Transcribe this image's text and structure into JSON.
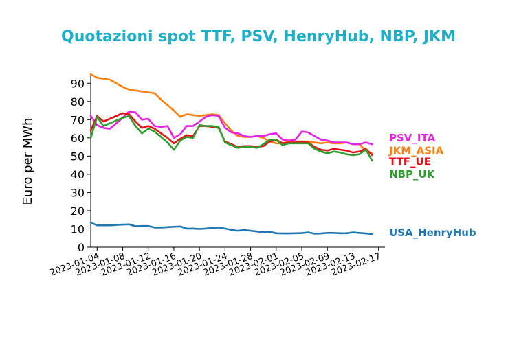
{
  "chart_data": {
    "type": "line",
    "title": "Quotazioni spot TTF, PSV, HenryHub, NBP, JKM",
    "title_color": "#1fb0c9",
    "ylabel": "Euro per MWh",
    "xlabel": "",
    "ylim": [
      0,
      95
    ],
    "yticks": [
      0,
      10,
      20,
      30,
      40,
      50,
      60,
      70,
      80,
      90
    ],
    "xlim": [
      "2023-01-03",
      "2023-02-18"
    ],
    "xticks": [
      "2023-01-04",
      "2023-01-08",
      "2023-01-12",
      "2023-01-16",
      "2023-01-20",
      "2023-01-24",
      "2023-01-28",
      "2023-02-01",
      "2023-02-05",
      "2023-02-09",
      "2023-02-13",
      "2023-02-17"
    ],
    "grid": false,
    "legend": "right-end-labels",
    "series": [
      {
        "name": "JKM_ASIA",
        "color": "#ff7f0e",
        "points": [
          [
            "2023-01-03",
            95
          ],
          [
            "2023-01-04",
            93
          ],
          [
            "2023-01-05",
            92.5
          ],
          [
            "2023-01-06",
            92
          ],
          [
            "2023-01-07",
            90
          ],
          [
            "2023-01-08",
            88
          ],
          [
            "2023-01-09",
            86.5
          ],
          [
            "2023-01-10",
            86
          ],
          [
            "2023-01-11",
            85.5
          ],
          [
            "2023-01-12",
            85
          ],
          [
            "2023-01-13",
            84.5
          ],
          [
            "2023-01-14",
            81
          ],
          [
            "2023-01-15",
            78
          ],
          [
            "2023-01-16",
            75
          ],
          [
            "2023-01-17",
            71.5
          ],
          [
            "2023-01-18",
            73
          ],
          [
            "2023-01-19",
            72.5
          ],
          [
            "2023-01-20",
            72
          ],
          [
            "2023-01-21",
            72.5
          ],
          [
            "2023-01-22",
            73
          ],
          [
            "2023-01-23",
            72.5
          ],
          [
            "2023-01-24",
            68
          ],
          [
            "2023-01-25",
            64
          ],
          [
            "2023-01-26",
            61
          ],
          [
            "2023-01-27",
            60.5
          ],
          [
            "2023-01-28",
            60.5
          ],
          [
            "2023-01-29",
            61
          ],
          [
            "2023-01-30",
            60
          ],
          [
            "2023-01-31",
            58
          ],
          [
            "2023-02-01",
            57
          ],
          [
            "2023-02-02",
            57
          ],
          [
            "2023-02-03",
            58
          ],
          [
            "2023-02-04",
            58
          ],
          [
            "2023-02-05",
            58
          ],
          [
            "2023-02-06",
            58
          ],
          [
            "2023-02-07",
            57.5
          ],
          [
            "2023-02-08",
            57
          ],
          [
            "2023-02-09",
            57.5
          ],
          [
            "2023-02-10",
            57
          ],
          [
            "2023-02-11",
            57
          ],
          [
            "2023-02-12",
            57.5
          ],
          [
            "2023-02-13",
            56.5
          ],
          [
            "2023-02-14",
            56.5
          ],
          [
            "2023-02-15",
            53
          ],
          [
            "2023-02-16",
            51.5
          ]
        ]
      },
      {
        "name": "PSV_ITA",
        "color": "#e820e8",
        "points": [
          [
            "2023-01-03",
            72
          ],
          [
            "2023-01-04",
            67
          ],
          [
            "2023-01-05",
            65.5
          ],
          [
            "2023-01-06",
            65
          ],
          [
            "2023-01-07",
            68
          ],
          [
            "2023-01-08",
            71
          ],
          [
            "2023-01-09",
            74.5
          ],
          [
            "2023-01-10",
            74
          ],
          [
            "2023-01-11",
            70
          ],
          [
            "2023-01-12",
            70.5
          ],
          [
            "2023-01-13",
            66.5
          ],
          [
            "2023-01-14",
            66
          ],
          [
            "2023-01-15",
            66.5
          ],
          [
            "2023-01-16",
            60
          ],
          [
            "2023-01-17",
            62
          ],
          [
            "2023-01-18",
            66.5
          ],
          [
            "2023-01-19",
            66.5
          ],
          [
            "2023-01-20",
            69
          ],
          [
            "2023-01-21",
            71.5
          ],
          [
            "2023-01-22",
            72.5
          ],
          [
            "2023-01-23",
            72
          ],
          [
            "2023-01-24",
            65.5
          ],
          [
            "2023-01-25",
            63
          ],
          [
            "2023-01-26",
            62.5
          ],
          [
            "2023-01-27",
            61
          ],
          [
            "2023-01-28",
            60.5
          ],
          [
            "2023-01-29",
            61
          ],
          [
            "2023-01-30",
            61
          ],
          [
            "2023-01-31",
            62
          ],
          [
            "2023-02-01",
            62.5
          ],
          [
            "2023-02-02",
            59
          ],
          [
            "2023-02-03",
            58.5
          ],
          [
            "2023-02-04",
            59
          ],
          [
            "2023-02-05",
            63.5
          ],
          [
            "2023-02-06",
            63
          ],
          [
            "2023-02-07",
            61
          ],
          [
            "2023-02-08",
            59
          ],
          [
            "2023-02-09",
            58.5
          ],
          [
            "2023-02-10",
            57.5
          ],
          [
            "2023-02-11",
            57.5
          ],
          [
            "2023-02-12",
            57.5
          ],
          [
            "2023-02-13",
            56.5
          ],
          [
            "2023-02-14",
            56.5
          ],
          [
            "2023-02-15",
            57.5
          ],
          [
            "2023-02-16",
            56.5
          ]
        ]
      },
      {
        "name": "TTF_UE",
        "color": "#e8111a",
        "points": [
          [
            "2023-01-03",
            64
          ],
          [
            "2023-01-04",
            72
          ],
          [
            "2023-01-05",
            69
          ],
          [
            "2023-01-06",
            70.5
          ],
          [
            "2023-01-07",
            72
          ],
          [
            "2023-01-08",
            73.5
          ],
          [
            "2023-01-09",
            73
          ],
          [
            "2023-01-10",
            69
          ],
          [
            "2023-01-11",
            65.5
          ],
          [
            "2023-01-12",
            66.5
          ],
          [
            "2023-01-13",
            65
          ],
          [
            "2023-01-14",
            62.5
          ],
          [
            "2023-01-15",
            60
          ],
          [
            "2023-01-16",
            57
          ],
          [
            "2023-01-17",
            59.5
          ],
          [
            "2023-01-18",
            61.5
          ],
          [
            "2023-01-19",
            61
          ],
          [
            "2023-01-20",
            66.5
          ],
          [
            "2023-01-21",
            66.5
          ],
          [
            "2023-01-22",
            66
          ],
          [
            "2023-01-23",
            65.5
          ],
          [
            "2023-01-24",
            58
          ],
          [
            "2023-01-25",
            56.5
          ],
          [
            "2023-01-26",
            55
          ],
          [
            "2023-01-27",
            55.5
          ],
          [
            "2023-01-28",
            55.5
          ],
          [
            "2023-01-29",
            55
          ],
          [
            "2023-01-30",
            55.5
          ],
          [
            "2023-01-31",
            58
          ],
          [
            "2023-02-01",
            59
          ],
          [
            "2023-02-02",
            57
          ],
          [
            "2023-02-03",
            57.5
          ],
          [
            "2023-02-04",
            57.5
          ],
          [
            "2023-02-05",
            58
          ],
          [
            "2023-02-06",
            57.5
          ],
          [
            "2023-02-07",
            55
          ],
          [
            "2023-02-08",
            53.5
          ],
          [
            "2023-02-09",
            53
          ],
          [
            "2023-02-10",
            54
          ],
          [
            "2023-02-11",
            53.5
          ],
          [
            "2023-02-12",
            53
          ],
          [
            "2023-02-13",
            52
          ],
          [
            "2023-02-14",
            52.5
          ],
          [
            "2023-02-15",
            54
          ],
          [
            "2023-02-16",
            50.5
          ]
        ]
      },
      {
        "name": "NBP_UK",
        "color": "#2ca02c",
        "points": [
          [
            "2023-01-03",
            60
          ],
          [
            "2023-01-04",
            71.5
          ],
          [
            "2023-01-05",
            66.5
          ],
          [
            "2023-01-06",
            68
          ],
          [
            "2023-01-07",
            69.5
          ],
          [
            "2023-01-08",
            71
          ],
          [
            "2023-01-09",
            72
          ],
          [
            "2023-01-10",
            66.5
          ],
          [
            "2023-01-11",
            62.5
          ],
          [
            "2023-01-12",
            65
          ],
          [
            "2023-01-13",
            63.5
          ],
          [
            "2023-01-14",
            60.5
          ],
          [
            "2023-01-15",
            57.5
          ],
          [
            "2023-01-16",
            53.5
          ],
          [
            "2023-01-17",
            58.5
          ],
          [
            "2023-01-18",
            60.5
          ],
          [
            "2023-01-19",
            60
          ],
          [
            "2023-01-20",
            67
          ],
          [
            "2023-01-21",
            66.5
          ],
          [
            "2023-01-22",
            66.5
          ],
          [
            "2023-01-23",
            66
          ],
          [
            "2023-01-24",
            57.5
          ],
          [
            "2023-01-25",
            56
          ],
          [
            "2023-01-26",
            54.5
          ],
          [
            "2023-01-27",
            55
          ],
          [
            "2023-01-28",
            55
          ],
          [
            "2023-01-29",
            54.5
          ],
          [
            "2023-01-30",
            56.5
          ],
          [
            "2023-01-31",
            59
          ],
          [
            "2023-02-01",
            59
          ],
          [
            "2023-02-02",
            56
          ],
          [
            "2023-02-03",
            57
          ],
          [
            "2023-02-04",
            57
          ],
          [
            "2023-02-05",
            57
          ],
          [
            "2023-02-06",
            57
          ],
          [
            "2023-02-07",
            54
          ],
          [
            "2023-02-08",
            52.5
          ],
          [
            "2023-02-09",
            51.5
          ],
          [
            "2023-02-10",
            52.5
          ],
          [
            "2023-02-11",
            52
          ],
          [
            "2023-02-12",
            51
          ],
          [
            "2023-02-13",
            50.5
          ],
          [
            "2023-02-14",
            51
          ],
          [
            "2023-02-15",
            53.5
          ],
          [
            "2023-02-16",
            47.5
          ]
        ]
      },
      {
        "name": "USA_HenryHub",
        "color": "#1f77b4",
        "points": [
          [
            "2023-01-03",
            13.5
          ],
          [
            "2023-01-04",
            12
          ],
          [
            "2023-01-05",
            12
          ],
          [
            "2023-01-06",
            12
          ],
          [
            "2023-01-07",
            12.2
          ],
          [
            "2023-01-08",
            12.4
          ],
          [
            "2023-01-09",
            12.5
          ],
          [
            "2023-01-10",
            11.5
          ],
          [
            "2023-01-11",
            11.6
          ],
          [
            "2023-01-12",
            11.6
          ],
          [
            "2023-01-13",
            10.8
          ],
          [
            "2023-01-14",
            10.8
          ],
          [
            "2023-01-15",
            11
          ],
          [
            "2023-01-16",
            11.2
          ],
          [
            "2023-01-17",
            11.4
          ],
          [
            "2023-01-18",
            10.2
          ],
          [
            "2023-01-19",
            10.2
          ],
          [
            "2023-01-20",
            10
          ],
          [
            "2023-01-21",
            10.2
          ],
          [
            "2023-01-22",
            10.5
          ],
          [
            "2023-01-23",
            10.8
          ],
          [
            "2023-01-24",
            10.2
          ],
          [
            "2023-01-25",
            9.5
          ],
          [
            "2023-01-26",
            9
          ],
          [
            "2023-01-27",
            9.5
          ],
          [
            "2023-01-28",
            9
          ],
          [
            "2023-01-29",
            8.6
          ],
          [
            "2023-01-30",
            8.2
          ],
          [
            "2023-01-31",
            8.4
          ],
          [
            "2023-02-01",
            7.6
          ],
          [
            "2023-02-02",
            7.5
          ],
          [
            "2023-02-03",
            7.5
          ],
          [
            "2023-02-04",
            7.6
          ],
          [
            "2023-02-05",
            7.7
          ],
          [
            "2023-02-06",
            8.1
          ],
          [
            "2023-02-07",
            7.4
          ],
          [
            "2023-02-08",
            7.5
          ],
          [
            "2023-02-09",
            7.8
          ],
          [
            "2023-02-10",
            7.8
          ],
          [
            "2023-02-11",
            7.6
          ],
          [
            "2023-02-12",
            7.6
          ],
          [
            "2023-02-13",
            8.1
          ],
          [
            "2023-02-14",
            7.8
          ],
          [
            "2023-02-15",
            7.5
          ],
          [
            "2023-02-16",
            7.2
          ]
        ]
      }
    ],
    "end_labels": [
      {
        "series": "PSV_ITA",
        "color": "#e820e8",
        "y": 60
      },
      {
        "series": "JKM_ASIA",
        "color": "#ff7f0e",
        "y": 53
      },
      {
        "series": "TTF_UE",
        "color": "#e8111a",
        "y": 47
      },
      {
        "series": "NBP_UK",
        "color": "#2ca02c",
        "y": 40
      },
      {
        "series": "USA_HenryHub",
        "color": "#1f77b4",
        "y": 8
      }
    ]
  }
}
